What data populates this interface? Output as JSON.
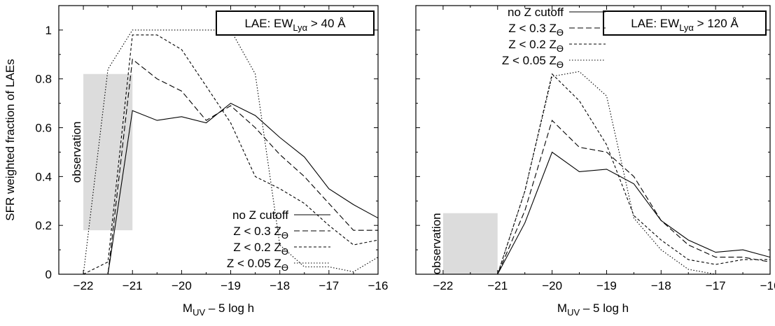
{
  "shared": {
    "ylabel": "SFR weighted fraction of LAEs",
    "xlabel_main": "M",
    "xlabel_sub": "UV",
    "xlabel_rest": " – 5 log h",
    "xlim": [
      -22.5,
      -16
    ],
    "ylim": [
      0,
      1.1
    ],
    "xticks": [
      -22,
      -21,
      -20,
      -19,
      -18,
      -17,
      -16
    ],
    "xtick_labels": [
      "−22",
      "−21",
      "−20",
      "−19",
      "−18",
      "−17",
      "−16"
    ],
    "yticks": [
      0,
      0.2,
      0.4,
      0.6,
      0.8,
      1
    ],
    "ytick_labels": [
      "0",
      "0.2",
      "0.4",
      "0.6",
      "0.8",
      "1"
    ],
    "observation_label": "observation",
    "observation_color": "#dcdcdc"
  },
  "legend": {
    "entries": [
      {
        "main": "no Z cutoff",
        "sub": "",
        "dash": "none"
      },
      {
        "main": "Z < 0.3 Z",
        "sub": "ϴ",
        "dash": "8,4"
      },
      {
        "main": "Z < 0.2 Z",
        "sub": "ϴ",
        "dash": "4,3"
      },
      {
        "main": "Z < 0.05 Z",
        "sub": "ϴ",
        "dash": "1.5,2.5"
      }
    ]
  },
  "chart_data": [
    {
      "type": "line",
      "box_label_prefix": "LAE: EW",
      "box_label_sub": "Lyα",
      "box_label_suffix": " > 40 Å",
      "observation_box": {
        "x": [
          -22,
          -21
        ],
        "y": [
          0.18,
          0.82
        ]
      },
      "x": [
        -22.5,
        -22,
        -21.5,
        -21,
        -20.5,
        -20,
        -19.5,
        -19,
        -18.5,
        -18,
        -17.5,
        -17,
        -16.5,
        -16
      ],
      "series": [
        {
          "name": "no Z cutoff",
          "values": [
            0,
            0,
            0,
            0.67,
            0.63,
            0.645,
            0.62,
            0.7,
            0.65,
            0.56,
            0.48,
            0.35,
            0.285,
            0.23
          ]
        },
        {
          "name": "Z < 0.3 Zϴ",
          "values": [
            0,
            0,
            0,
            0.88,
            0.8,
            0.75,
            0.63,
            0.69,
            0.6,
            0.49,
            0.4,
            0.29,
            0.18,
            0.18
          ]
        },
        {
          "name": "Z < 0.2 Zϴ",
          "values": [
            0,
            0,
            0.05,
            0.98,
            0.98,
            0.92,
            0.77,
            0.62,
            0.4,
            0.35,
            0.29,
            0.2,
            0.12,
            0.14
          ]
        },
        {
          "name": "Z < 0.05 Zϴ",
          "values": [
            0,
            0,
            0.84,
            1.0,
            1.0,
            1.0,
            1.0,
            1.0,
            0.82,
            0.12,
            0.03,
            0.03,
            0.01,
            0.07
          ]
        }
      ]
    },
    {
      "type": "line",
      "box_label_prefix": "LAE: EW",
      "box_label_sub": "Lyα",
      "box_label_suffix": " > 120 Å",
      "observation_box": {
        "x": [
          -22,
          -21
        ],
        "y": [
          0,
          0.25
        ]
      },
      "x": [
        -22.5,
        -22,
        -21.5,
        -21,
        -20.5,
        -20,
        -19.5,
        -19,
        -18.5,
        -18,
        -17.5,
        -17,
        -16.5,
        -16
      ],
      "series": [
        {
          "name": "no Z cutoff",
          "values": [
            0,
            0,
            0,
            0,
            0.21,
            0.5,
            0.42,
            0.43,
            0.37,
            0.22,
            0.14,
            0.09,
            0.1,
            0.07
          ]
        },
        {
          "name": "Z < 0.3 Zϴ",
          "values": [
            0,
            0,
            0,
            0,
            0.26,
            0.63,
            0.52,
            0.5,
            0.4,
            0.22,
            0.12,
            0.07,
            0.07,
            0.05
          ]
        },
        {
          "name": "Z < 0.2 Zϴ",
          "values": [
            0,
            0,
            0,
            0,
            0.34,
            0.82,
            0.71,
            0.53,
            0.24,
            0.14,
            0.06,
            0.04,
            0.06,
            0.06
          ]
        },
        {
          "name": "Z < 0.05 Zϴ",
          "values": [
            0,
            0,
            0,
            0,
            0.34,
            0.81,
            0.83,
            0.73,
            0.23,
            0.1,
            0.02,
            0,
            0,
            0
          ]
        }
      ]
    }
  ]
}
